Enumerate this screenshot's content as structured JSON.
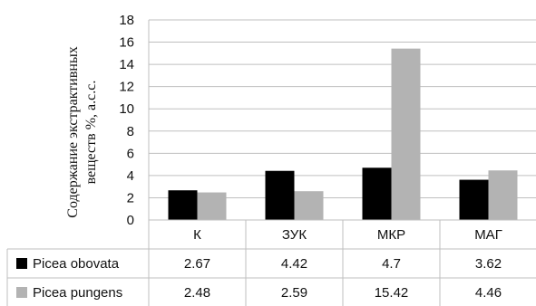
{
  "chart_data": {
    "type": "bar",
    "ylabel_line1": "Содержание экстрактивных",
    "ylabel_line2": "веществ %, а.с.с.",
    "ylim": [
      0,
      18
    ],
    "yticks": [
      "0",
      "2",
      "4",
      "6",
      "8",
      "10",
      "12",
      "14",
      "16",
      "18"
    ],
    "grid": true,
    "legend_placement": "data-table",
    "categories": [
      "К",
      "ЗУК",
      "МКР",
      "МАГ"
    ],
    "series": [
      {
        "name": "Picea obovata",
        "color": "#000000",
        "values": [
          2.67,
          4.42,
          4.7,
          3.62
        ],
        "table_values": [
          "2.67",
          "4.42",
          "4.7",
          "3.62"
        ]
      },
      {
        "name": "Picea pungens",
        "color": "#b3b3b3",
        "values": [
          2.48,
          2.59,
          15.42,
          4.46
        ],
        "table_values": [
          "2.48",
          "2.59",
          "15.42",
          "4.46"
        ]
      }
    ]
  }
}
